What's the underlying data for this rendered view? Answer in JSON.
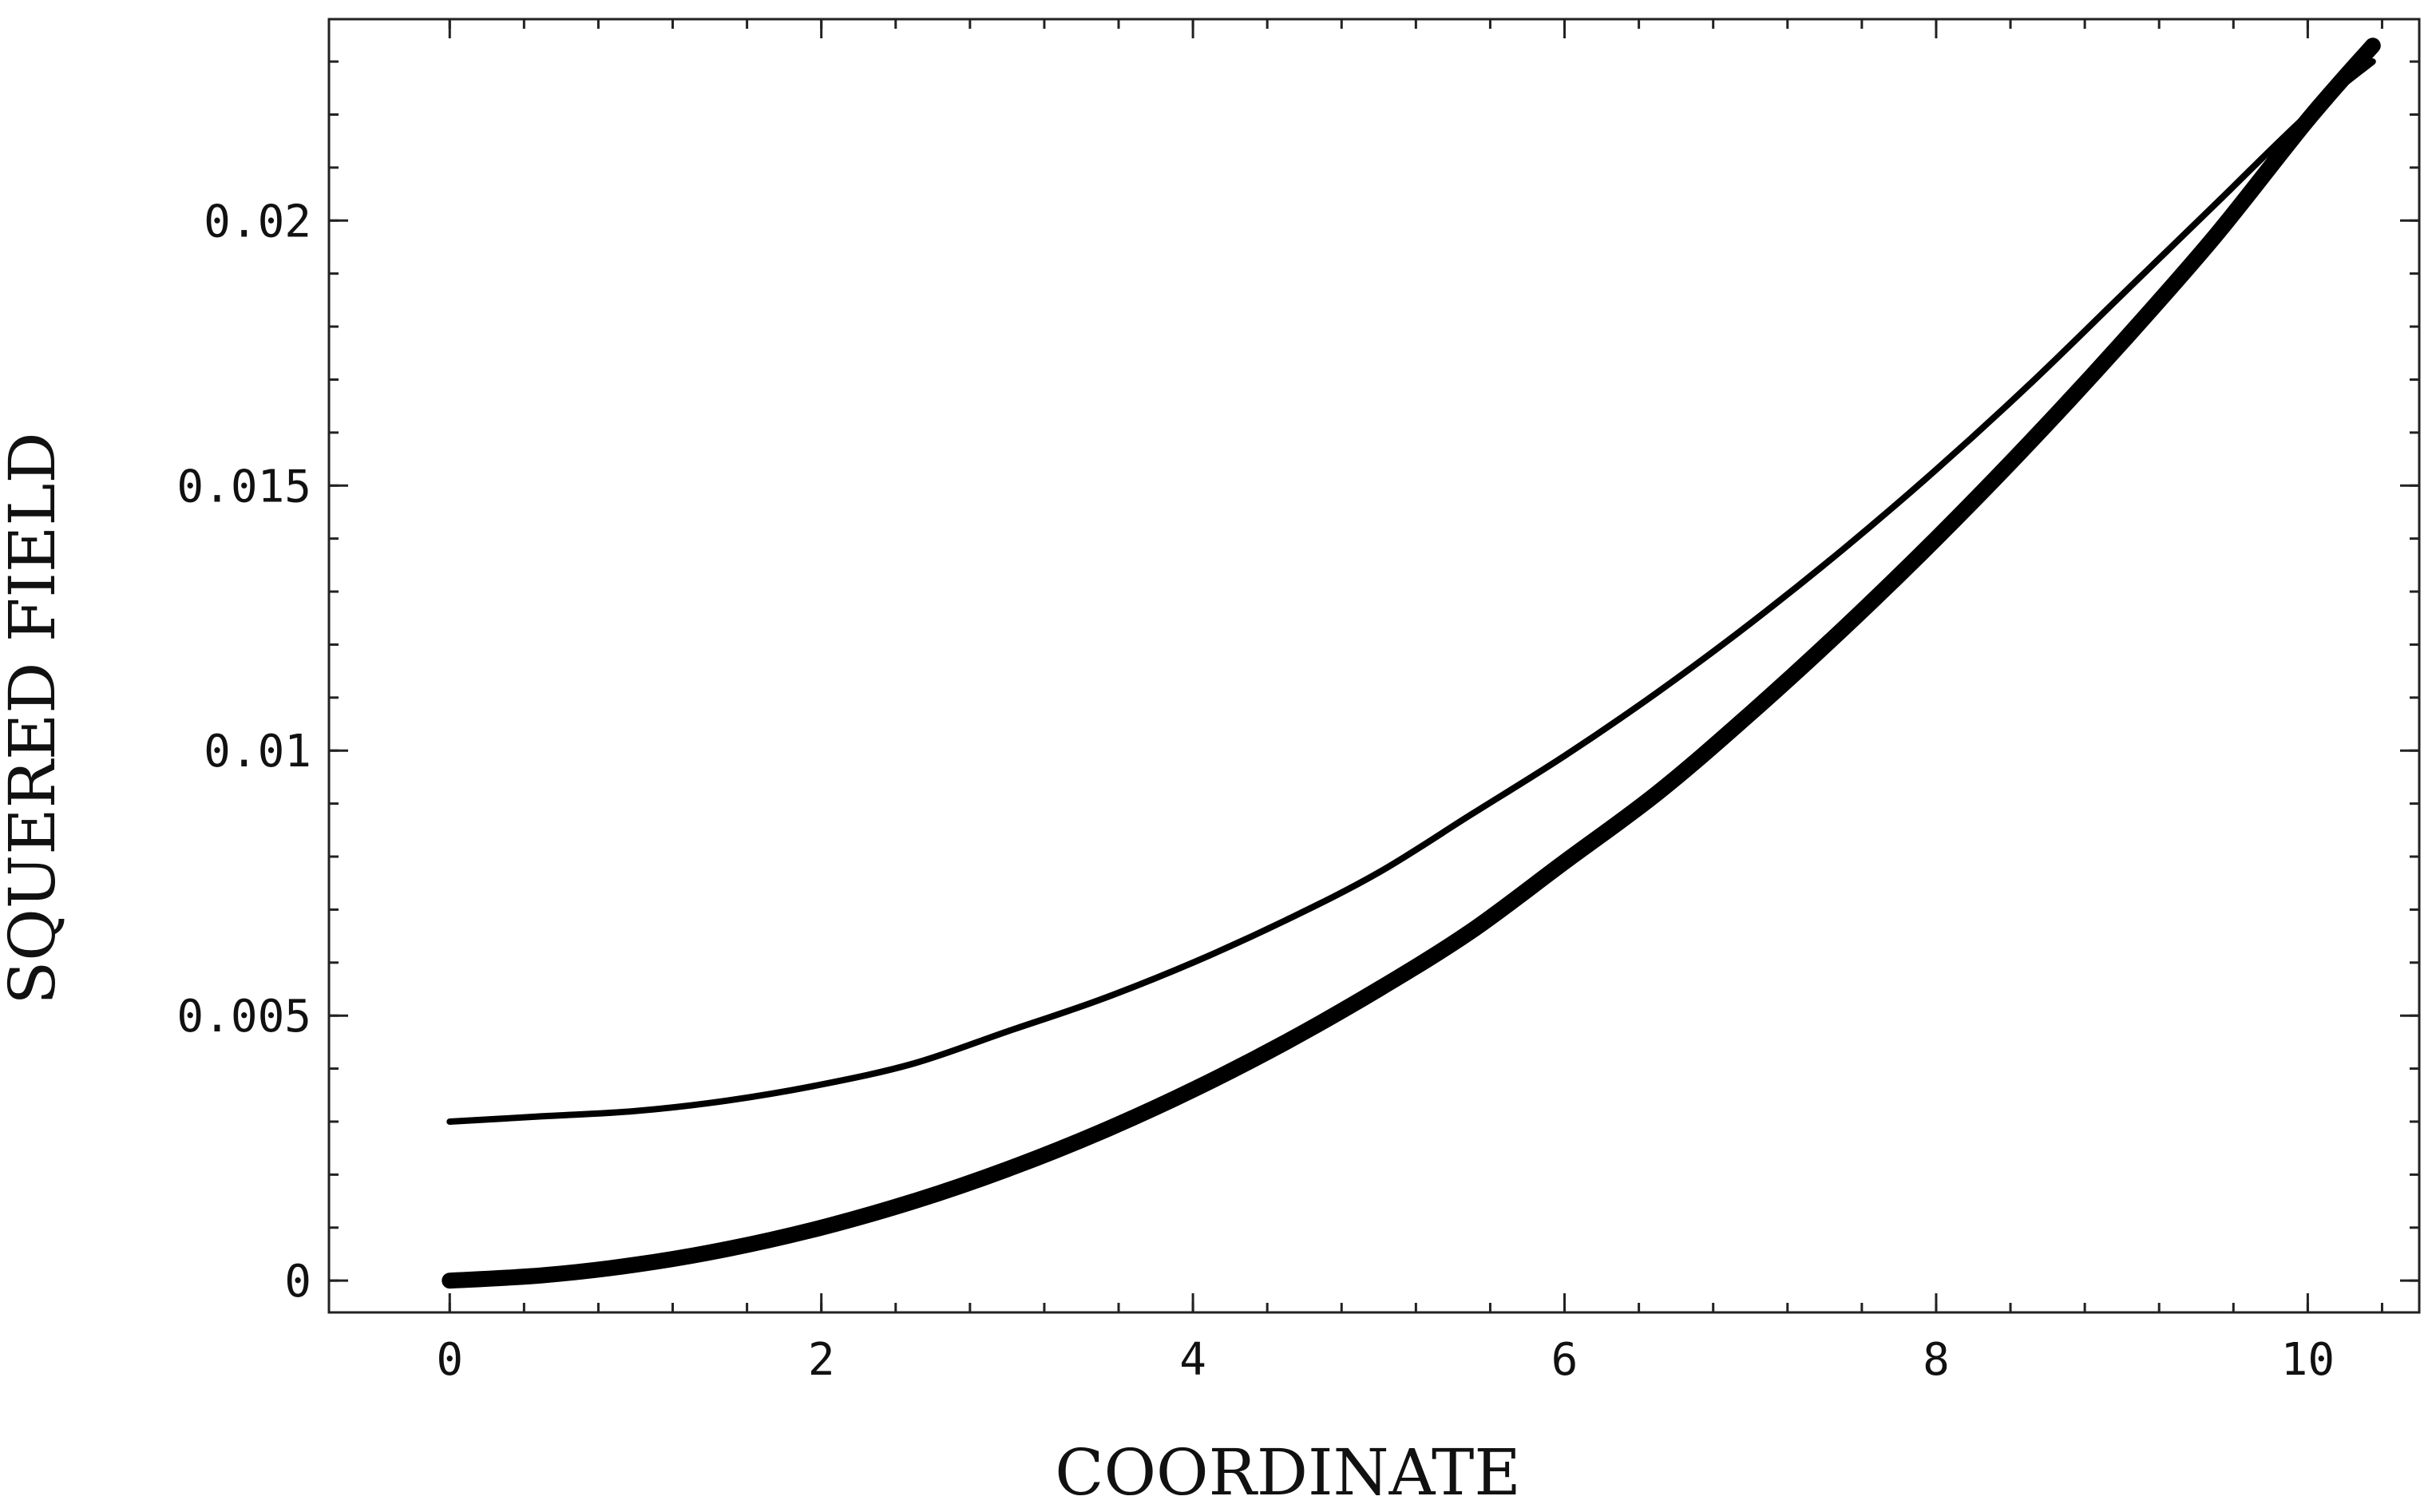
{
  "chart_data": {
    "type": "line",
    "title": "",
    "xlabel": "COORDINATE",
    "ylabel": "SQUERED FIELD",
    "xlim": [
      -0.65,
      10.6
    ],
    "ylim": [
      -0.0006,
      0.0238
    ],
    "grid": false,
    "legend": "none",
    "x_ticks": [
      0,
      2,
      4,
      6,
      8,
      10
    ],
    "x_tick_labels": [
      "0",
      "2",
      "4",
      "6",
      "8",
      "10"
    ],
    "y_ticks": [
      0,
      0.005,
      0.01,
      0.015,
      0.02
    ],
    "y_tick_labels": [
      "0",
      "0.005",
      "0.01",
      "0.015",
      "0.02"
    ],
    "x_minor_step": 0.4,
    "y_minor_step": 0.001,
    "series": [
      {
        "color": "#000000",
        "style": "thin",
        "x": [
          0,
          0.5,
          1,
          1.5,
          2,
          2.5,
          3,
          3.5,
          4,
          4.5,
          5,
          5.5,
          6,
          6.5,
          7,
          7.5,
          8,
          8.5,
          9,
          9.5,
          10,
          10.35
        ],
        "y": [
          0.003,
          0.0031,
          0.0032,
          0.0034,
          0.0037,
          0.0041,
          0.0047,
          0.0053,
          0.006,
          0.0068,
          0.0077,
          0.0088,
          0.0099,
          0.0111,
          0.0124,
          0.0138,
          0.0153,
          0.0169,
          0.0186,
          0.0203,
          0.022,
          0.023
        ]
      },
      {
        "color": "#000000",
        "style": "thick",
        "x": [
          0,
          0.5,
          1,
          1.5,
          2,
          2.5,
          3,
          3.5,
          4,
          4.5,
          5,
          5.5,
          6,
          6.5,
          7,
          7.5,
          8,
          8.5,
          9,
          9.5,
          10,
          10.35
        ],
        "y": [
          0.0,
          0.0001,
          0.0003,
          0.0006,
          0.001,
          0.0015,
          0.0021,
          0.0028,
          0.0036,
          0.0045,
          0.0055,
          0.0066,
          0.0079,
          0.0092,
          0.0107,
          0.0123,
          0.014,
          0.0158,
          0.0177,
          0.0197,
          0.0219,
          0.0233
        ]
      }
    ]
  }
}
